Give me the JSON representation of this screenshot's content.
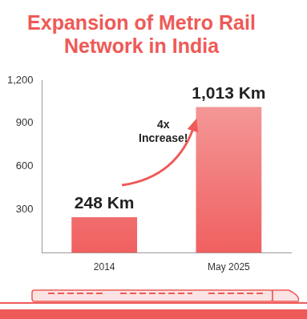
{
  "chart_data": {
    "type": "bar",
    "title": "Expansion of Metro Rail Network in India",
    "categories": [
      "2014",
      "May 2025"
    ],
    "values": [
      248,
      1013
    ],
    "value_labels": [
      "248 Km",
      "1,013 Km"
    ],
    "data_labels": true,
    "color": "#f06060",
    "ylim": [
      0,
      1200
    ],
    "yticks": [
      300,
      600,
      900,
      {
        "value": 1200,
        "label": "1,200"
      }
    ],
    "grid": false,
    "annotation": "4x Increase!"
  }
}
